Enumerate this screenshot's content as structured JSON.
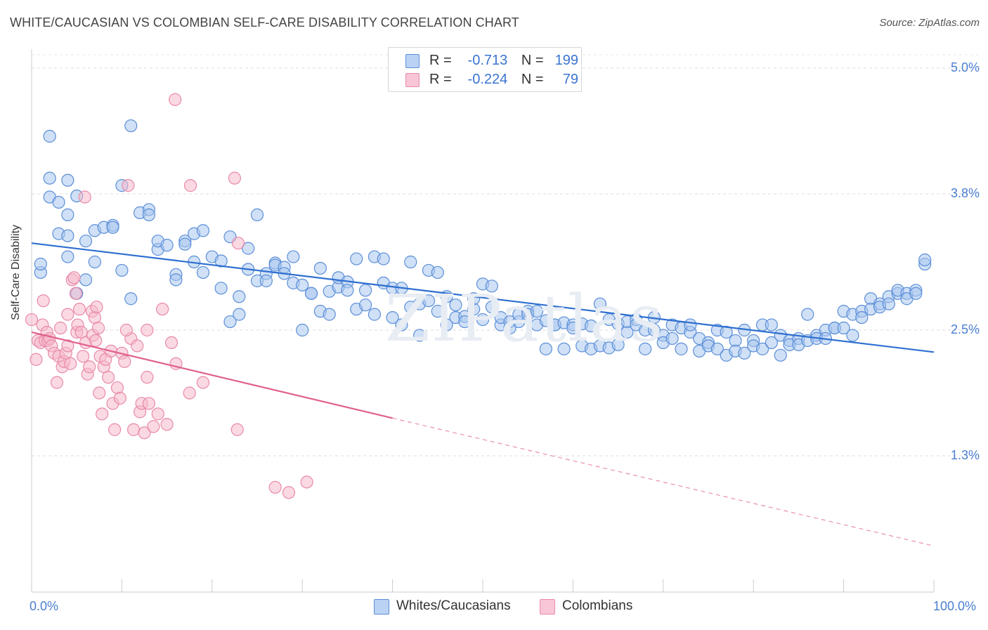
{
  "title": "WHITE/CAUCASIAN VS COLOMBIAN SELF-CARE DISABILITY CORRELATION CHART",
  "source": "Source: ZipAtlas.com",
  "watermark": "ZIPatlas",
  "legend": {
    "r_label": "R =",
    "n_label": "N =",
    "rows": [
      {
        "r": "-0.713",
        "n": "199"
      },
      {
        "r": "-0.224",
        "n": "79"
      }
    ]
  },
  "chart_data": {
    "type": "scatter",
    "title": "WHITE/CAUCASIAN VS COLOMBIAN SELF-CARE DISABILITY CORRELATION CHART",
    "xlabel": "",
    "ylabel": "Self-Care Disability",
    "xlim": [
      0,
      100
    ],
    "ylim": [
      0,
      5.2
    ],
    "x_tick_labels": [
      "0.0%",
      "100.0%"
    ],
    "y_ticks": [
      1.3,
      2.5,
      3.8,
      5.0
    ],
    "y_tick_labels": [
      "1.3%",
      "2.5%",
      "3.8%",
      "5.0%"
    ],
    "grid": true,
    "legend_position": "top-center",
    "colors": {
      "whites_fill": "#a9c6ef",
      "whites_stroke": "#5b8fd8",
      "whites_line": "#2e6fd0",
      "colombians_fill": "#f6b9cc",
      "colombians_stroke": "#e98aa8",
      "colombians_line": "#e0608c"
    },
    "series": [
      {
        "name": "Whites/Caucasians",
        "r": -0.713,
        "n": 199,
        "trend": {
          "x0": 0,
          "y0": 3.33,
          "x1": 100,
          "y1": 2.29
        },
        "points": [
          [
            1,
            3.05
          ],
          [
            1,
            3.13
          ],
          [
            2,
            4.35
          ],
          [
            2,
            3.77
          ],
          [
            2,
            3.95
          ],
          [
            3,
            3.72
          ],
          [
            3,
            3.42
          ],
          [
            4,
            3.93
          ],
          [
            4,
            3.6
          ],
          [
            4,
            3.4
          ],
          [
            4,
            3.2
          ],
          [
            5,
            2.85
          ],
          [
            5,
            3.78
          ],
          [
            6,
            2.98
          ],
          [
            6,
            3.35
          ],
          [
            7,
            3.15
          ],
          [
            7,
            3.45
          ],
          [
            8,
            3.48
          ],
          [
            9,
            3.5
          ],
          [
            9,
            3.48
          ],
          [
            10,
            3.07
          ],
          [
            10,
            3.88
          ],
          [
            11,
            2.8
          ],
          [
            11,
            4.45
          ],
          [
            12,
            3.62
          ],
          [
            13,
            3.65
          ],
          [
            13,
            3.6
          ],
          [
            14,
            3.27
          ],
          [
            14,
            3.35
          ],
          [
            15,
            3.31
          ],
          [
            16,
            3.03
          ],
          [
            16,
            2.98
          ],
          [
            17,
            3.35
          ],
          [
            17,
            3.32
          ],
          [
            18,
            3.15
          ],
          [
            18,
            3.42
          ],
          [
            19,
            3.05
          ],
          [
            19,
            3.45
          ],
          [
            20,
            3.2
          ],
          [
            21,
            3.16
          ],
          [
            21,
            2.9
          ],
          [
            22,
            2.58
          ],
          [
            22,
            3.39
          ],
          [
            23,
            2.65
          ],
          [
            23,
            2.82
          ],
          [
            24,
            3.08
          ],
          [
            24,
            3.28
          ],
          [
            25,
            2.97
          ],
          [
            25,
            3.6
          ],
          [
            26,
            3.04
          ],
          [
            26,
            2.97
          ],
          [
            27,
            3.14
          ],
          [
            27,
            3.12
          ],
          [
            28,
            3.1
          ],
          [
            28,
            3.04
          ],
          [
            29,
            2.95
          ],
          [
            29,
            3.2
          ],
          [
            30,
            2.93
          ],
          [
            30,
            2.5
          ],
          [
            31,
            2.85
          ],
          [
            31,
            2.85
          ],
          [
            32,
            3.09
          ],
          [
            32,
            2.68
          ],
          [
            33,
            2.65
          ],
          [
            33,
            2.87
          ],
          [
            34,
            2.91
          ],
          [
            34,
            3.0
          ],
          [
            35,
            2.96
          ],
          [
            35,
            2.88
          ],
          [
            36,
            2.7
          ],
          [
            36,
            3.18
          ],
          [
            37,
            2.74
          ],
          [
            37,
            2.88
          ],
          [
            38,
            3.2
          ],
          [
            38,
            2.65
          ],
          [
            39,
            3.18
          ],
          [
            39,
            2.95
          ],
          [
            40,
            2.9
          ],
          [
            40,
            2.62
          ],
          [
            41,
            2.55
          ],
          [
            41,
            2.9
          ],
          [
            42,
            3.15
          ],
          [
            42,
            2.72
          ],
          [
            43,
            2.75
          ],
          [
            43,
            2.45
          ],
          [
            44,
            3.07
          ],
          [
            44,
            2.78
          ],
          [
            45,
            3.05
          ],
          [
            45,
            2.68
          ],
          [
            46,
            2.82
          ],
          [
            46,
            2.55
          ],
          [
            47,
            2.74
          ],
          [
            47,
            2.62
          ],
          [
            48,
            2.63
          ],
          [
            48,
            2.58
          ],
          [
            49,
            2.7
          ],
          [
            49,
            2.8
          ],
          [
            50,
            2.6
          ],
          [
            50,
            2.94
          ],
          [
            51,
            2.72
          ],
          [
            51,
            2.92
          ],
          [
            52,
            2.55
          ],
          [
            52,
            2.62
          ],
          [
            53,
            2.58
          ],
          [
            53,
            2.52
          ],
          [
            54,
            2.58
          ],
          [
            54,
            2.65
          ],
          [
            55,
            2.68
          ],
          [
            55,
            2.65
          ],
          [
            56,
            2.68
          ],
          [
            56,
            2.55
          ],
          [
            57,
            2.59
          ],
          [
            57,
            2.32
          ],
          [
            58,
            2.55
          ],
          [
            58,
            2.55
          ],
          [
            59,
            2.57
          ],
          [
            59,
            2.32
          ],
          [
            60,
            2.55
          ],
          [
            60,
            2.52
          ],
          [
            61,
            2.56
          ],
          [
            61,
            2.35
          ],
          [
            62,
            2.54
          ],
          [
            62,
            2.32
          ],
          [
            63,
            2.75
          ],
          [
            63,
            2.35
          ],
          [
            64,
            2.6
          ],
          [
            64,
            2.33
          ],
          [
            65,
            2.56
          ],
          [
            65,
            2.36
          ],
          [
            66,
            2.48
          ],
          [
            66,
            2.58
          ],
          [
            67,
            2.6
          ],
          [
            67,
            2.55
          ],
          [
            68,
            2.5
          ],
          [
            68,
            2.32
          ],
          [
            69,
            2.62
          ],
          [
            69,
            2.5
          ],
          [
            70,
            2.45
          ],
          [
            70,
            2.38
          ],
          [
            71,
            2.42
          ],
          [
            71,
            2.55
          ],
          [
            72,
            2.52
          ],
          [
            72,
            2.32
          ],
          [
            73,
            2.48
          ],
          [
            73,
            2.55
          ],
          [
            74,
            2.42
          ],
          [
            74,
            2.3
          ],
          [
            75,
            2.38
          ],
          [
            75,
            2.35
          ],
          [
            76,
            2.5
          ],
          [
            76,
            2.32
          ],
          [
            77,
            2.48
          ],
          [
            77,
            2.26
          ],
          [
            78,
            2.4
          ],
          [
            78,
            2.3
          ],
          [
            79,
            2.5
          ],
          [
            79,
            2.28
          ],
          [
            80,
            2.4
          ],
          [
            80,
            2.35
          ],
          [
            81,
            2.55
          ],
          [
            81,
            2.32
          ],
          [
            82,
            2.55
          ],
          [
            82,
            2.38
          ],
          [
            83,
            2.45
          ],
          [
            83,
            2.26
          ],
          [
            84,
            2.4
          ],
          [
            84,
            2.36
          ],
          [
            85,
            2.42
          ],
          [
            85,
            2.36
          ],
          [
            86,
            2.4
          ],
          [
            86,
            2.65
          ],
          [
            87,
            2.45
          ],
          [
            87,
            2.42
          ],
          [
            88,
            2.5
          ],
          [
            88,
            2.42
          ],
          [
            89,
            2.52
          ],
          [
            89,
            2.52
          ],
          [
            90,
            2.68
          ],
          [
            90,
            2.52
          ],
          [
            91,
            2.45
          ],
          [
            91,
            2.65
          ],
          [
            92,
            2.68
          ],
          [
            92,
            2.62
          ],
          [
            93,
            2.8
          ],
          [
            93,
            2.7
          ],
          [
            94,
            2.75
          ],
          [
            94,
            2.72
          ],
          [
            95,
            2.82
          ],
          [
            95,
            2.75
          ],
          [
            96,
            2.85
          ],
          [
            96,
            2.88
          ],
          [
            97,
            2.85
          ],
          [
            97,
            2.8
          ],
          [
            98,
            2.88
          ],
          [
            98,
            2.85
          ],
          [
            99,
            3.13
          ],
          [
            99,
            3.17
          ]
        ]
      },
      {
        "name": "Colombians",
        "r": -0.224,
        "n": 79,
        "trend": {
          "x0": 0,
          "y0": 2.48,
          "x1": 40,
          "y1": 1.66,
          "x1_ext": 100,
          "y1_ext": 0.44
        },
        "points": [
          [
            0,
            2.6
          ],
          [
            0.5,
            2.22
          ],
          [
            0.7,
            2.4
          ],
          [
            1,
            2.38
          ],
          [
            1.2,
            2.55
          ],
          [
            1.3,
            2.78
          ],
          [
            1.5,
            2.4
          ],
          [
            1.7,
            2.48
          ],
          [
            1.8,
            2.4
          ],
          [
            2,
            2.42
          ],
          [
            2.2,
            2.35
          ],
          [
            2.5,
            2.28
          ],
          [
            2.8,
            2.0
          ],
          [
            3,
            2.25
          ],
          [
            3.2,
            2.52
          ],
          [
            3.4,
            2.15
          ],
          [
            3.6,
            2.2
          ],
          [
            3.8,
            2.28
          ],
          [
            4,
            2.35
          ],
          [
            4,
            2.65
          ],
          [
            4.3,
            2.18
          ],
          [
            4.5,
            2.98
          ],
          [
            4.7,
            3.0
          ],
          [
            4.9,
            2.85
          ],
          [
            5,
            2.48
          ],
          [
            5.1,
            2.55
          ],
          [
            5.3,
            2.7
          ],
          [
            5.5,
            2.48
          ],
          [
            5.7,
            2.25
          ],
          [
            5.9,
            3.77
          ],
          [
            6,
            2.38
          ],
          [
            6.2,
            2.08
          ],
          [
            6.4,
            2.15
          ],
          [
            6.7,
            2.68
          ],
          [
            6.8,
            2.45
          ],
          [
            7,
            2.62
          ],
          [
            7.1,
            2.4
          ],
          [
            7.2,
            2.72
          ],
          [
            7.4,
            2.52
          ],
          [
            7.5,
            1.9
          ],
          [
            7.6,
            2.25
          ],
          [
            7.8,
            1.7
          ],
          [
            8,
            2.15
          ],
          [
            8.2,
            2.22
          ],
          [
            8.5,
            2.05
          ],
          [
            8.8,
            2.3
          ],
          [
            9,
            1.8
          ],
          [
            9.2,
            1.55
          ],
          [
            9.5,
            1.95
          ],
          [
            9.8,
            1.85
          ],
          [
            10,
            2.28
          ],
          [
            10.3,
            2.2
          ],
          [
            10.7,
            3.88
          ],
          [
            11,
            2.42
          ],
          [
            11.3,
            1.55
          ],
          [
            11.7,
            2.35
          ],
          [
            12,
            1.72
          ],
          [
            12.2,
            1.8
          ],
          [
            12.5,
            1.52
          ],
          [
            12.8,
            2.05
          ],
          [
            13,
            1.8
          ],
          [
            13.5,
            1.58
          ],
          [
            14,
            1.7
          ],
          [
            14.5,
            2.7
          ],
          [
            15,
            1.6
          ],
          [
            15.5,
            2.38
          ],
          [
            15.9,
            4.7
          ],
          [
            16,
            2.18
          ],
          [
            17.5,
            1.9
          ],
          [
            17.6,
            3.88
          ],
          [
            19,
            2.0
          ],
          [
            22.5,
            3.95
          ],
          [
            22.8,
            1.55
          ],
          [
            22.9,
            3.33
          ],
          [
            27,
            1.0
          ],
          [
            28.5,
            0.95
          ],
          [
            30.5,
            1.05
          ],
          [
            12.8,
            2.5
          ],
          [
            10.5,
            2.5
          ]
        ]
      }
    ]
  }
}
